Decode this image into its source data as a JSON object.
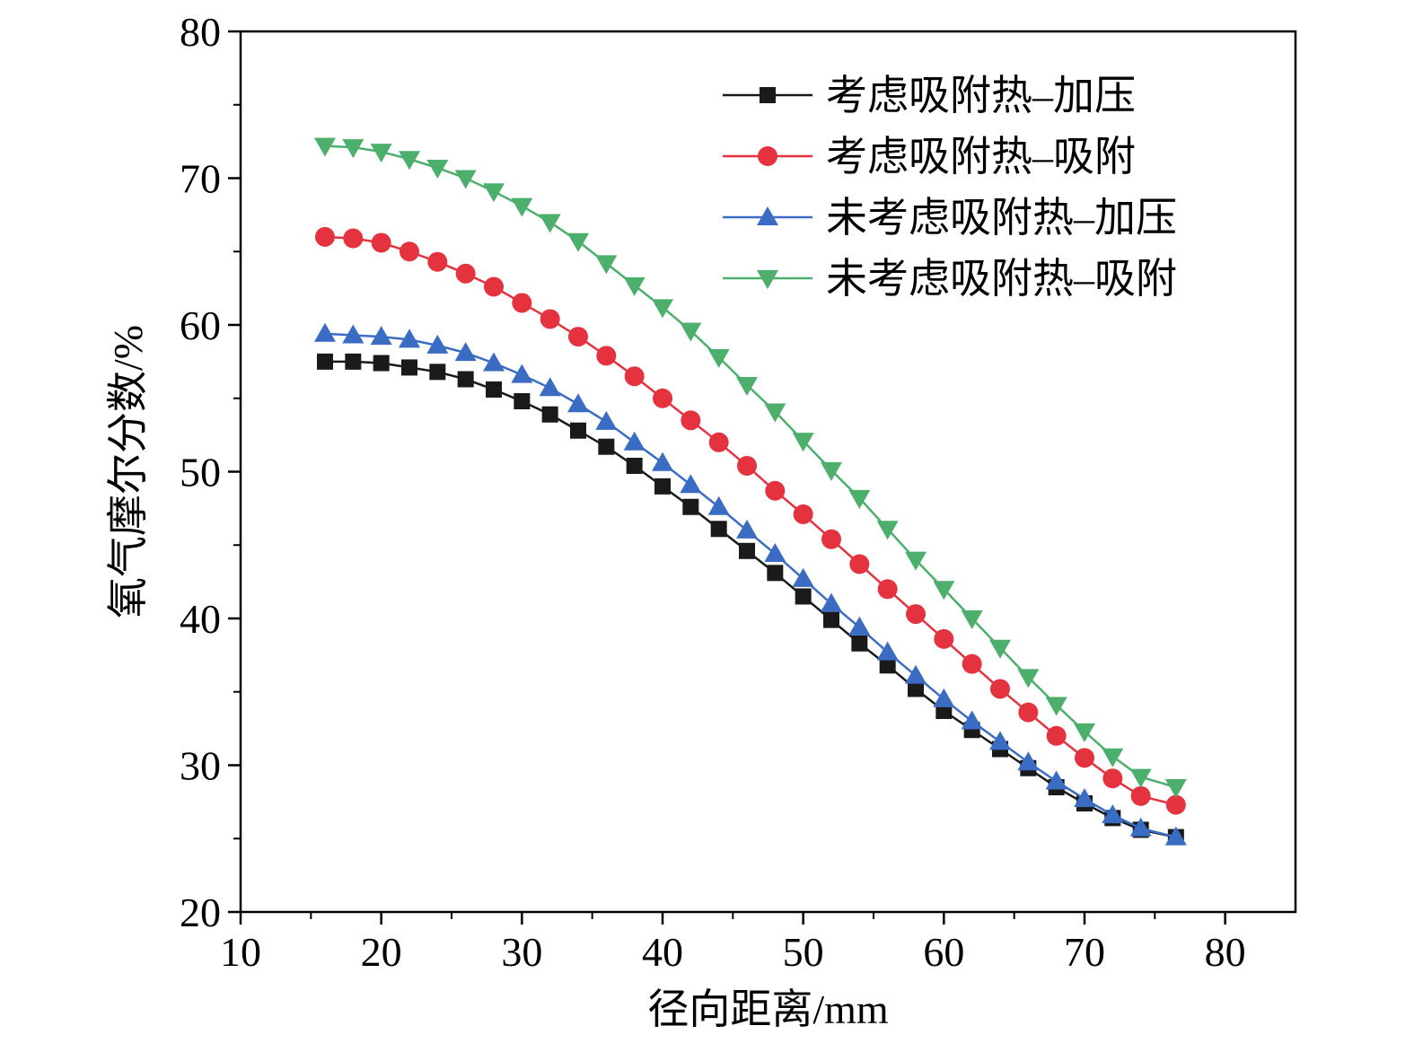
{
  "chart_data": {
    "type": "line",
    "xlabel": "径向距离/mm",
    "ylabel": "氧气摩尔分数/%",
    "xlim": [
      10,
      85
    ],
    "ylim": [
      20,
      80
    ],
    "xticks": [
      10,
      20,
      30,
      40,
      50,
      60,
      70,
      80
    ],
    "yticks": [
      20,
      30,
      40,
      50,
      60,
      70,
      80
    ],
    "grid": false,
    "legend_position": "top-right",
    "x": [
      16,
      18,
      20,
      22,
      24,
      26,
      28,
      30,
      32,
      34,
      36,
      38,
      40,
      42,
      44,
      46,
      48,
      50,
      52,
      54,
      56,
      58,
      60,
      62,
      64,
      66,
      68,
      70,
      72,
      74,
      76.5
    ],
    "series": [
      {
        "name": "考虑吸附热–加压",
        "color": "#1a1a1a",
        "marker": "square",
        "values": [
          57.5,
          57.5,
          57.4,
          57.1,
          56.8,
          56.3,
          55.6,
          54.8,
          53.9,
          52.8,
          51.7,
          50.4,
          49.0,
          47.6,
          46.1,
          44.6,
          43.1,
          41.5,
          39.9,
          38.3,
          36.8,
          35.2,
          33.7,
          32.4,
          31.1,
          29.8,
          28.5,
          27.4,
          26.4,
          25.6,
          25.1
        ]
      },
      {
        "name": "考虑吸附热–吸附",
        "color": "#e5323f",
        "marker": "circle",
        "values": [
          66.0,
          65.9,
          65.6,
          65.0,
          64.3,
          63.5,
          62.6,
          61.5,
          60.4,
          59.2,
          57.9,
          56.5,
          55.0,
          53.5,
          52.0,
          50.4,
          48.7,
          47.1,
          45.4,
          43.7,
          42.0,
          40.3,
          38.6,
          36.9,
          35.2,
          33.6,
          32.0,
          30.5,
          29.1,
          27.9,
          27.3
        ]
      },
      {
        "name": "未考虑吸附热–加压",
        "color": "#3a6cc4",
        "marker": "triangle-up",
        "values": [
          59.4,
          59.3,
          59.2,
          59.0,
          58.6,
          58.1,
          57.4,
          56.6,
          55.7,
          54.6,
          53.4,
          52.0,
          50.6,
          49.1,
          47.6,
          46.0,
          44.4,
          42.7,
          41.0,
          39.4,
          37.7,
          36.1,
          34.5,
          33.0,
          31.6,
          30.2,
          28.9,
          27.7,
          26.6,
          25.7,
          25.1
        ]
      },
      {
        "name": "未考虑吸附热–吸附",
        "color": "#4caf6c",
        "marker": "triangle-down",
        "values": [
          72.2,
          72.1,
          71.8,
          71.3,
          70.7,
          70.0,
          69.1,
          68.1,
          67.0,
          65.7,
          64.2,
          62.7,
          61.2,
          59.6,
          57.8,
          55.9,
          54.1,
          52.1,
          50.1,
          48.2,
          46.1,
          44.0,
          42.0,
          40.0,
          38.0,
          36.0,
          34.1,
          32.3,
          30.6,
          29.2,
          28.5
        ]
      }
    ]
  }
}
